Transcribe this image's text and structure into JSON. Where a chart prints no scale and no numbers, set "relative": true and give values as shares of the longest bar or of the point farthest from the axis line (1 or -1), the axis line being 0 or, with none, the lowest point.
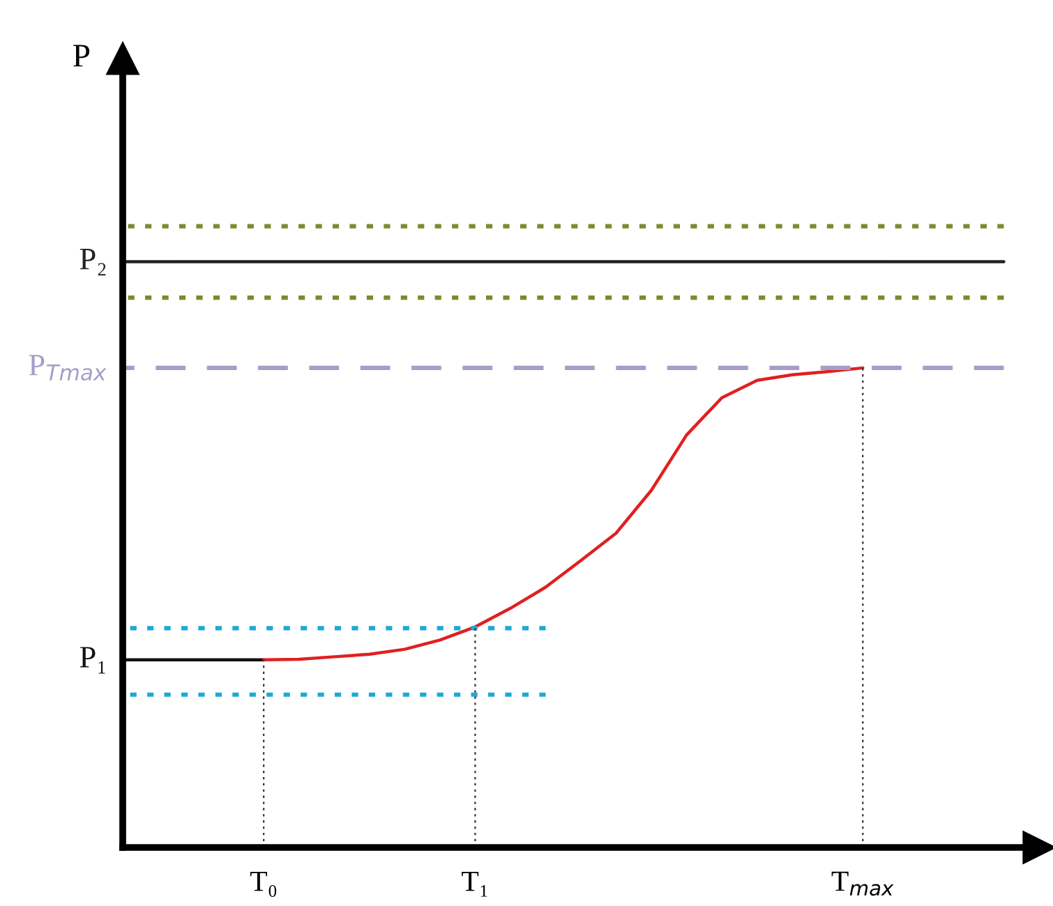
{
  "chart_data": {
    "type": "line",
    "relative": true,
    "ylabel": "P",
    "categories": [
      null,
      null,
      null,
      null,
      "T₀",
      null,
      null,
      null,
      null,
      null,
      "T₁",
      null,
      null,
      null,
      null,
      null,
      null,
      null,
      null,
      null,
      null,
      "T$_{max}$",
      null,
      null,
      null,
      null,
      null
    ],
    "series": [
      {
        "name": "P₁",
        "color": "#111111",
        "line_style": "solid",
        "values": [
          0.302,
          0.302,
          0.302,
          0.302,
          0.302,
          null,
          null,
          null,
          null,
          null,
          null,
          null,
          null,
          null,
          null,
          null,
          null,
          null,
          null,
          null,
          null,
          null,
          null,
          null,
          null,
          null,
          null
        ]
      },
      {
        "color": "#e02020",
        "line_style": "solid",
        "values": [
          null,
          null,
          null,
          null,
          0.302,
          0.303,
          0.307,
          0.311,
          0.319,
          0.334,
          0.355,
          0.385,
          0.419,
          0.462,
          0.506,
          0.575,
          0.664,
          0.724,
          0.752,
          0.761,
          0.766,
          0.772,
          null,
          null,
          null,
          null,
          null
        ]
      },
      {
        "name": "P₂",
        "color": "#222222",
        "line_style": "solid",
        "values": [
          0.943,
          0.943,
          0.943,
          0.943,
          0.943,
          0.943,
          0.943,
          0.943,
          0.943,
          0.943,
          0.943,
          0.943,
          0.943,
          0.943,
          0.943,
          0.943,
          0.943,
          0.943,
          0.943,
          0.943,
          0.943,
          0.943,
          0.943,
          0.943,
          0.943,
          0.943,
          null
        ]
      },
      {
        "color": "#7a8c2e",
        "line_style": "dotted",
        "values": [
          1.0,
          1.0,
          1.0,
          1.0,
          1.0,
          1.0,
          1.0,
          1.0,
          1.0,
          1.0,
          1.0,
          1.0,
          1.0,
          1.0,
          1.0,
          1.0,
          1.0,
          1.0,
          1.0,
          1.0,
          1.0,
          1.0,
          1.0,
          1.0,
          1.0,
          1.0,
          null
        ]
      },
      {
        "color": "#7a8c2e",
        "line_style": "dotted",
        "values": [
          0.885,
          0.885,
          0.885,
          0.885,
          0.885,
          0.885,
          0.885,
          0.885,
          0.885,
          0.885,
          0.885,
          0.885,
          0.885,
          0.885,
          0.885,
          0.885,
          0.885,
          0.885,
          0.885,
          0.885,
          0.885,
          0.885,
          0.885,
          0.885,
          0.885,
          0.885,
          null
        ]
      },
      {
        "name": "P$_{Tmax}$",
        "color": "#a89cc8",
        "line_style": "dashed",
        "values": [
          0.772,
          0.772,
          0.772,
          0.772,
          0.772,
          0.772,
          0.772,
          0.772,
          0.772,
          0.772,
          0.772,
          0.772,
          0.772,
          0.772,
          0.772,
          0.772,
          0.772,
          0.772,
          0.772,
          0.772,
          0.772,
          0.772,
          0.772,
          0.772,
          0.772,
          0.772,
          null
        ]
      },
      {
        "color": "#1fa8d8",
        "line_style": "dotted",
        "values": [
          0.353,
          0.353,
          0.353,
          0.353,
          0.353,
          0.353,
          0.353,
          0.353,
          0.353,
          0.353,
          0.353,
          0.353,
          0.353,
          null,
          null,
          null,
          null,
          null,
          null,
          null,
          null,
          null,
          null,
          null,
          null,
          null,
          null
        ]
      },
      {
        "color": "#1fa8d8",
        "line_style": "dotted",
        "values": [
          0.246,
          0.246,
          0.246,
          0.246,
          0.246,
          0.246,
          0.246,
          0.246,
          0.246,
          0.246,
          0.246,
          0.246,
          0.246,
          null,
          null,
          null,
          null,
          null,
          null,
          null,
          null,
          null,
          null,
          null,
          null,
          null,
          null
        ]
      }
    ],
    "ref_lines": [
      {
        "axis": "x",
        "value": "T₀",
        "color": "#333333",
        "line_style": "dotted"
      },
      {
        "axis": "x",
        "value": "T₁",
        "color": "#333333",
        "line_style": "dotted"
      },
      {
        "axis": "x",
        "value": "T$_{max}$",
        "color": "#333333",
        "line_style": "dotted"
      }
    ]
  }
}
